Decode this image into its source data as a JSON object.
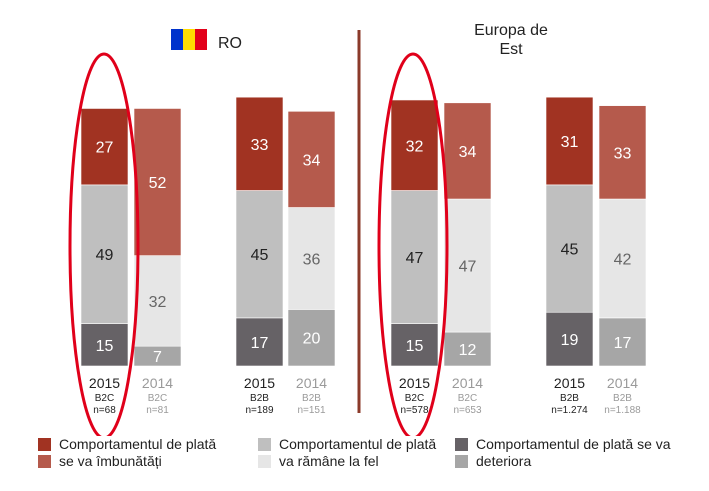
{
  "chart_data": {
    "type": "bar",
    "stacked": true,
    "panels": [
      {
        "title": "RO",
        "flag": "ro-flag"
      },
      {
        "title": "Europa de\nEst"
      }
    ],
    "bars": [
      {
        "year": "2015",
        "seg": "B2C",
        "n": "n=68",
        "values": [
          15,
          49,
          27
        ],
        "highlight": true
      },
      {
        "year": "2014",
        "seg": "B2C",
        "n": "n=81",
        "values": [
          7,
          32,
          52
        ]
      },
      {
        "year": "2015",
        "seg": "B2B",
        "n": "n=189",
        "values": [
          17,
          45,
          33
        ]
      },
      {
        "year": "2014",
        "seg": "B2B",
        "n": "n=151",
        "values": [
          20,
          36,
          34
        ]
      },
      {
        "year": "2015",
        "seg": "B2C",
        "n": "n=578",
        "values": [
          15,
          47,
          32
        ],
        "highlight": true
      },
      {
        "year": "2014",
        "seg": "B2C",
        "n": "n=653",
        "values": [
          12,
          47,
          34
        ]
      },
      {
        "year": "2015",
        "seg": "B2B",
        "n": "n=1.274",
        "values": [
          19,
          45,
          31
        ]
      },
      {
        "year": "2014",
        "seg": "B2B",
        "n": "n=1.188",
        "values": [
          17,
          42,
          33
        ]
      }
    ],
    "colors": {
      "2015": [
        "#666266",
        "#bfbfbf",
        "#a13322"
      ],
      "2014": [
        "#a6a6a6",
        "#e6e6e6",
        "#b55a4c"
      ]
    },
    "divider_color": "#8b3a2a",
    "highlight_color": "#e0001a"
  },
  "legend": [
    {
      "lines": [
        "Comportamentul de plată",
        "se va îmbunătăți"
      ],
      "colors": [
        "#a13322",
        "#b55a4c"
      ]
    },
    {
      "lines": [
        "Comportamentul de plată",
        "va rămâne la fel"
      ],
      "colors": [
        "#bfbfbf",
        "#e6e6e6"
      ]
    },
    {
      "lines": [
        "Comportamentul de plată se va",
        "deteriora"
      ],
      "colors": [
        "#666266",
        "#a6a6a6"
      ]
    }
  ]
}
